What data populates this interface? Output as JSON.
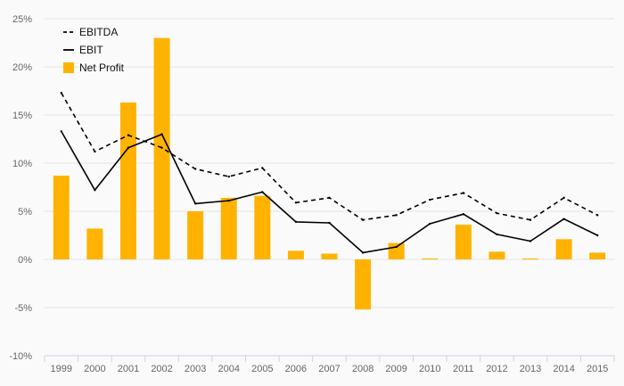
{
  "chart_data": {
    "type": "bar",
    "categories": [
      "1999",
      "2000",
      "2001",
      "2002",
      "2003",
      "2004",
      "2005",
      "2006",
      "2007",
      "2008",
      "2009",
      "2010",
      "2011",
      "2012",
      "2013",
      "2014",
      "2015"
    ],
    "ylim": [
      -10,
      25
    ],
    "yticks": [
      -10,
      -5,
      0,
      5,
      10,
      15,
      20,
      25
    ],
    "ytick_labels": [
      "-10%",
      "-5%",
      "0%",
      "5%",
      "10%",
      "15%",
      "20%",
      "25%"
    ],
    "grid": true,
    "legend_position": "top-left",
    "series": [
      {
        "name": "EBITDA",
        "type": "line",
        "style": "dashed",
        "color": "#000000",
        "values": [
          17.3,
          11.2,
          12.9,
          11.6,
          9.4,
          8.6,
          9.5,
          5.9,
          6.4,
          4.1,
          4.6,
          6.2,
          6.9,
          4.8,
          4.1,
          6.4,
          4.6
        ]
      },
      {
        "name": "EBIT",
        "type": "line",
        "style": "solid",
        "color": "#000000",
        "values": [
          13.3,
          7.2,
          11.6,
          13.0,
          5.8,
          6.1,
          7.0,
          3.9,
          3.8,
          0.7,
          1.3,
          3.7,
          4.7,
          2.6,
          1.9,
          4.2,
          2.5
        ]
      },
      {
        "name": "Net Profit",
        "type": "bar",
        "color": "#FFB300",
        "values": [
          8.7,
          3.2,
          16.3,
          23.0,
          5.0,
          6.4,
          6.6,
          0.9,
          0.6,
          -5.2,
          1.7,
          0.1,
          3.6,
          0.8,
          0.1,
          2.1,
          0.7
        ]
      }
    ]
  }
}
